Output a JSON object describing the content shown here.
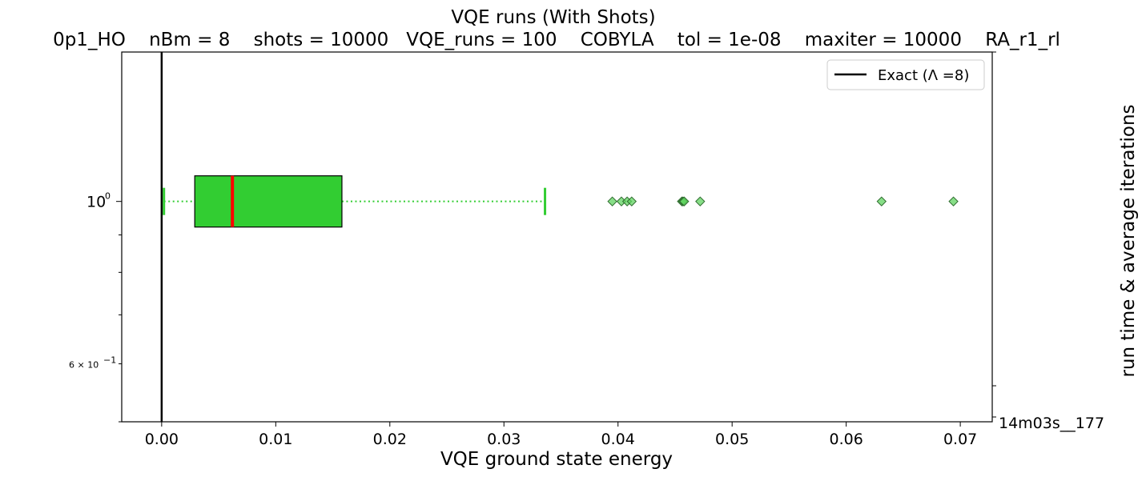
{
  "chart_data": {
    "type": "box",
    "title": "VQE runs (With Shots)",
    "subtitle": "0p1_HO    nBm = 8    shots = 10000   VQE_runs = 100    COBYLA    tol = 1e-08    maxiter = 10000    RA_r1_rl",
    "xlabel": "VQE ground state energy",
    "ylabel_right": "run time & average iterations",
    "right_tick_label": "14m03s__177",
    "xlim": [
      -0.0035,
      0.0728
    ],
    "x_ticks": [
      0.0,
      0.01,
      0.02,
      0.03,
      0.04,
      0.05,
      0.06,
      0.07
    ],
    "x_tick_labels": [
      "0.00",
      "0.01",
      "0.02",
      "0.03",
      "0.04",
      "0.05",
      "0.06",
      "0.07"
    ],
    "y_scale": "log",
    "ylim": [
      0.5,
      1.6
    ],
    "y_major_tick_label": "10",
    "y_major_tick_exponent": "0",
    "y_minor_tick_label": "6 × 10",
    "y_minor_tick_exponent": "−1",
    "box": {
      "position": 1.0,
      "whisker_low": 0.0002,
      "q1": 0.0029,
      "median": 0.0062,
      "q3": 0.0158,
      "whisker_high": 0.0336,
      "fliers": [
        0.0395,
        0.0403,
        0.0408,
        0.0412,
        0.0456,
        0.0457,
        0.0458,
        0.0472,
        0.0631,
        0.0694
      ],
      "box_color": "#32cd32",
      "median_color": "#ff0000",
      "whisker_color": "#32cd32",
      "flier_color": "#5fd35f"
    },
    "exact_line": {
      "x": 0.0,
      "label": "Exact (Λ =8)",
      "color": "#000000"
    },
    "legend_position": "top-right",
    "grid": false
  }
}
